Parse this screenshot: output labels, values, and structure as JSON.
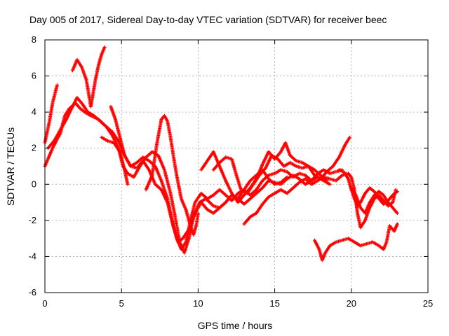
{
  "chart_data": {
    "type": "scatter",
    "title": "Day 005 of 2017, Sidereal Day-to-day VTEC variation (SDTVAR) for receiver beec",
    "xlabel": "GPS time / hours",
    "ylabel": "SDTVAR / TECUs",
    "xlim": [
      0,
      25
    ],
    "ylim": [
      -6,
      8
    ],
    "xticks": [
      "0",
      "5",
      "10",
      "15",
      "20",
      "25"
    ],
    "yticks": [
      "-6",
      "-4",
      "-2",
      "0",
      "2",
      "4",
      "6",
      "8"
    ],
    "grid": true,
    "marker": "+",
    "color": "#ff0000",
    "series": [
      {
        "points": [
          [
            0,
            2.3
          ],
          [
            0.3,
            3.5
          ],
          [
            0.5,
            4.5
          ],
          [
            0.8,
            5.5
          ]
        ]
      },
      {
        "points": [
          [
            0,
            1.0
          ],
          [
            0.3,
            1.6
          ],
          [
            0.5,
            2.0
          ],
          [
            0.8,
            2.5
          ],
          [
            1.0,
            2.8
          ],
          [
            1.3,
            3.8
          ],
          [
            1.6,
            4.2
          ],
          [
            2.0,
            4.5
          ],
          [
            2.3,
            4.2
          ],
          [
            2.6,
            4.0
          ],
          [
            3.0,
            3.8
          ],
          [
            3.5,
            3.6
          ],
          [
            4.0,
            3.2
          ],
          [
            4.4,
            2.9
          ],
          [
            4.8,
            2.4
          ],
          [
            5.2,
            1.6
          ],
          [
            5.6,
            1.0
          ],
          [
            6.0,
            1.2
          ],
          [
            6.4,
            1.5
          ],
          [
            6.8,
            1.3
          ],
          [
            7.2,
            1.0
          ],
          [
            7.6,
            0.2
          ],
          [
            8.0,
            -0.8
          ],
          [
            8.3,
            -2.0
          ],
          [
            8.6,
            -3.0
          ],
          [
            8.9,
            -3.6
          ],
          [
            9.2,
            -3.2
          ],
          [
            9.5,
            -2.0
          ],
          [
            9.8,
            -1.0
          ],
          [
            10.2,
            -0.5
          ],
          [
            10.6,
            -0.8
          ],
          [
            11.0,
            -0.6
          ],
          [
            11.4,
            -0.3
          ],
          [
            11.8,
            -0.6
          ],
          [
            12.2,
            -0.9
          ],
          [
            12.6,
            -0.5
          ],
          [
            13.0,
            -0.3
          ],
          [
            13.4,
            -0.6
          ],
          [
            13.8,
            -0.3
          ],
          [
            14.2,
            0.2
          ],
          [
            14.6,
            0.5
          ],
          [
            15.0,
            0.6
          ],
          [
            15.4,
            0.8
          ],
          [
            15.8,
            0.7
          ],
          [
            16.2,
            0.4
          ],
          [
            16.6,
            0.6
          ],
          [
            17.0,
            0.5
          ],
          [
            17.4,
            0.2
          ],
          [
            17.8,
            0.6
          ],
          [
            18.2,
            0.8
          ],
          [
            18.6,
            0.6
          ],
          [
            19.0,
            0.7
          ],
          [
            19.4,
            0.8
          ]
        ]
      },
      {
        "points": [
          [
            0.2,
            2.0
          ],
          [
            0.6,
            2.4
          ],
          [
            1.0,
            3.0
          ],
          [
            1.4,
            3.6
          ],
          [
            1.8,
            4.3
          ],
          [
            2.1,
            4.8
          ],
          [
            2.4,
            4.5
          ],
          [
            2.8,
            4.0
          ],
          [
            3.2,
            3.8
          ],
          [
            3.6,
            3.5
          ],
          [
            4.0,
            3.2
          ],
          [
            4.4,
            2.7
          ],
          [
            4.8,
            2.0
          ],
          [
            5.1,
            1.0
          ],
          [
            5.4,
            0.6
          ],
          [
            5.8,
            0.4
          ],
          [
            6.2,
            1.0
          ],
          [
            6.6,
            1.5
          ],
          [
            7.0,
            1.8
          ],
          [
            7.4,
            1.6
          ],
          [
            7.8,
            0.8
          ],
          [
            8.2,
            -0.5
          ],
          [
            8.5,
            -1.8
          ],
          [
            8.8,
            -3.2
          ],
          [
            9.1,
            -3.8
          ],
          [
            9.4,
            -3.0
          ],
          [
            9.7,
            -1.8
          ],
          [
            10.1,
            -1.0
          ],
          [
            10.5,
            -0.8
          ],
          [
            11.0,
            -1.2
          ],
          [
            11.4,
            -1.3
          ],
          [
            11.8,
            -1.0
          ],
          [
            12.2,
            -0.6
          ],
          [
            12.6,
            -0.8
          ],
          [
            13.0,
            -1.1
          ],
          [
            13.4,
            -0.8
          ],
          [
            13.8,
            -0.5
          ],
          [
            14.2,
            -0.2
          ],
          [
            14.6,
            0.2
          ],
          [
            15.0,
            0.1
          ],
          [
            15.4,
            0.0
          ],
          [
            15.8,
            0.3
          ],
          [
            16.2,
            0.5
          ],
          [
            16.6,
            0.3
          ],
          [
            17.0,
            0.0
          ],
          [
            17.4,
            0.2
          ],
          [
            17.8,
            0.4
          ],
          [
            18.2,
            0.2
          ],
          [
            18.6,
            0.0
          ]
        ]
      },
      {
        "points": [
          [
            1.8,
            6.3
          ],
          [
            2.1,
            6.9
          ],
          [
            2.4,
            6.5
          ],
          [
            2.7,
            5.8
          ],
          [
            2.9,
            4.8
          ],
          [
            3.0,
            4.3
          ],
          [
            3.1,
            4.8
          ],
          [
            3.3,
            5.8
          ],
          [
            3.5,
            6.6
          ],
          [
            3.7,
            7.2
          ],
          [
            3.9,
            7.6
          ]
        ]
      },
      {
        "points": [
          [
            4.3,
            4.3
          ],
          [
            4.6,
            3.6
          ],
          [
            4.9,
            2.6
          ],
          [
            5.2,
            1.6
          ],
          [
            5.6,
            1.0
          ],
          [
            6.0,
            0.9
          ],
          [
            6.4,
            1.3
          ],
          [
            6.8,
            0.8
          ],
          [
            7.2,
            0.0
          ],
          [
            7.6,
            -0.3
          ],
          [
            8.0,
            -1.0
          ],
          [
            8.4,
            -2.4
          ],
          [
            8.7,
            -3.2
          ],
          [
            9.0,
            -3.0
          ],
          [
            9.4,
            -2.5
          ],
          [
            9.8,
            -1.6
          ],
          [
            10.2,
            -1.0
          ],
          [
            10.6,
            -1.4
          ],
          [
            11.0,
            -1.6
          ],
          [
            11.4,
            -1.3
          ],
          [
            11.8,
            -1.0
          ],
          [
            12.2,
            -0.6
          ],
          [
            12.6,
            -0.8
          ],
          [
            13.0,
            -0.3
          ],
          [
            13.4,
            0.2
          ],
          [
            13.8,
            0.5
          ],
          [
            14.2,
            0.8
          ],
          [
            14.6,
            0.3
          ],
          [
            15.0,
            0.0
          ],
          [
            15.4,
            0.1
          ],
          [
            15.8,
            0.4
          ]
        ]
      },
      {
        "points": [
          [
            3.7,
            2.6
          ],
          [
            4.1,
            2.4
          ],
          [
            4.5,
            2.3
          ],
          [
            4.9,
            1.8
          ],
          [
            5.2,
            0.8
          ],
          [
            5.4,
            0.0
          ]
        ]
      },
      {
        "points": [
          [
            6.6,
            -0.3
          ],
          [
            7.0,
            0.5
          ],
          [
            7.3,
            2.2
          ],
          [
            7.6,
            3.6
          ],
          [
            7.8,
            3.8
          ],
          [
            8.0,
            3.5
          ],
          [
            8.2,
            2.6
          ],
          [
            8.4,
            1.5
          ],
          [
            8.6,
            0.5
          ],
          [
            8.9,
            -0.8
          ],
          [
            9.2,
            -1.4
          ],
          [
            9.5,
            -2.3
          ],
          [
            9.7,
            -2.8
          ],
          [
            9.9,
            -2.2
          ],
          [
            10.0,
            -1.6
          ]
        ]
      },
      {
        "points": [
          [
            10.2,
            0.8
          ],
          [
            10.6,
            1.3
          ],
          [
            11.0,
            1.8
          ],
          [
            11.4,
            1.0
          ],
          [
            11.8,
            0.2
          ],
          [
            12.2,
            -0.5
          ],
          [
            12.6,
            -1.0
          ],
          [
            13.0,
            -0.6
          ],
          [
            13.4,
            -0.2
          ],
          [
            13.8,
            0.3
          ],
          [
            14.2,
            1.1
          ],
          [
            14.6,
            1.8
          ],
          [
            15.0,
            1.4
          ],
          [
            15.4,
            1.8
          ],
          [
            15.7,
            2.3
          ],
          [
            16.0,
            1.6
          ],
          [
            16.4,
            1.3
          ],
          [
            16.8,
            1.2
          ],
          [
            17.2,
            1.0
          ],
          [
            17.6,
            0.5
          ],
          [
            18.0,
            0.3
          ],
          [
            18.4,
            0.7
          ],
          [
            18.8,
            1.0
          ],
          [
            19.2,
            1.5
          ],
          [
            19.6,
            2.2
          ],
          [
            19.9,
            2.6
          ]
        ]
      },
      {
        "points": [
          [
            11.0,
            0.8
          ],
          [
            11.4,
            1.2
          ],
          [
            11.8,
            1.5
          ],
          [
            12.2,
            1.4
          ],
          [
            12.5,
            0.5
          ],
          [
            12.8,
            -0.3
          ],
          [
            13.2,
            -0.5
          ],
          [
            13.6,
            0.0
          ],
          [
            14.0,
            0.5
          ],
          [
            14.4,
            0.9
          ],
          [
            14.8,
            1.6
          ],
          [
            15.2,
            1.4
          ],
          [
            15.6,
            1.0
          ],
          [
            16.0,
            1.2
          ],
          [
            16.4,
            1.0
          ],
          [
            16.8,
            0.9
          ],
          [
            17.2,
            1.0
          ],
          [
            17.6,
            0.8
          ],
          [
            18.0,
            0.5
          ],
          [
            18.4,
            0.2
          ]
        ]
      },
      {
        "points": [
          [
            13.0,
            -2.2
          ],
          [
            13.4,
            -1.8
          ],
          [
            13.8,
            -1.6
          ],
          [
            14.2,
            -1.1
          ],
          [
            14.6,
            -0.7
          ],
          [
            15.0,
            -0.5
          ],
          [
            15.4,
            -0.3
          ],
          [
            15.8,
            -0.5
          ],
          [
            16.2,
            -0.2
          ],
          [
            16.6,
            0.1
          ],
          [
            17.0,
            0.3
          ],
          [
            17.4,
            0.0
          ],
          [
            17.8,
            0.2
          ],
          [
            18.2,
            0.4
          ],
          [
            18.6,
            0.3
          ],
          [
            19.0,
            0.2
          ],
          [
            19.4,
            0.5
          ],
          [
            19.8,
            0.6
          ],
          [
            20.0,
            0.4
          ],
          [
            20.2,
            -0.3
          ],
          [
            20.4,
            -1.6
          ],
          [
            20.6,
            -2.4
          ],
          [
            20.9,
            -2.0
          ],
          [
            21.2,
            -1.3
          ],
          [
            21.5,
            -0.8
          ],
          [
            21.8,
            -0.6
          ],
          [
            22.1,
            -0.9
          ],
          [
            22.4,
            -1.2
          ],
          [
            22.7,
            -1.0
          ],
          [
            22.9,
            -0.3
          ]
        ]
      },
      {
        "points": [
          [
            19.2,
            0.8
          ],
          [
            19.5,
            0.7
          ],
          [
            19.8,
            0.3
          ],
          [
            20.0,
            -0.3
          ],
          [
            20.2,
            -0.8
          ],
          [
            20.4,
            -1.2
          ],
          [
            20.6,
            -1.0
          ],
          [
            20.9,
            -0.5
          ],
          [
            21.2,
            -0.2
          ],
          [
            21.5,
            -0.4
          ],
          [
            21.8,
            -0.8
          ],
          [
            22.1,
            -1.1
          ],
          [
            22.4,
            -0.9
          ],
          [
            22.7,
            -0.6
          ],
          [
            23.0,
            -0.4
          ]
        ]
      },
      {
        "points": [
          [
            20.0,
            -0.2
          ],
          [
            20.3,
            -0.6
          ],
          [
            20.6,
            -1.3
          ],
          [
            20.9,
            -1.6
          ],
          [
            21.2,
            -1.0
          ],
          [
            21.5,
            -0.6
          ],
          [
            21.8,
            -0.4
          ],
          [
            22.1,
            -0.6
          ],
          [
            22.4,
            -1.0
          ],
          [
            22.7,
            -1.3
          ],
          [
            23.0,
            -1.6
          ]
        ]
      },
      {
        "points": [
          [
            17.6,
            -3.1
          ],
          [
            17.9,
            -3.6
          ],
          [
            18.1,
            -4.2
          ],
          [
            18.3,
            -3.8
          ],
          [
            18.6,
            -3.4
          ],
          [
            19.0,
            -3.2
          ],
          [
            19.4,
            -3.1
          ],
          [
            19.8,
            -3.0
          ],
          [
            20.2,
            -3.2
          ],
          [
            20.6,
            -3.4
          ],
          [
            21.0,
            -3.3
          ],
          [
            21.4,
            -3.2
          ],
          [
            21.8,
            -3.4
          ],
          [
            22.1,
            -3.6
          ],
          [
            22.3,
            -3.2
          ],
          [
            22.5,
            -2.3
          ],
          [
            22.8,
            -2.6
          ],
          [
            23.0,
            -2.2
          ]
        ]
      }
    ]
  }
}
